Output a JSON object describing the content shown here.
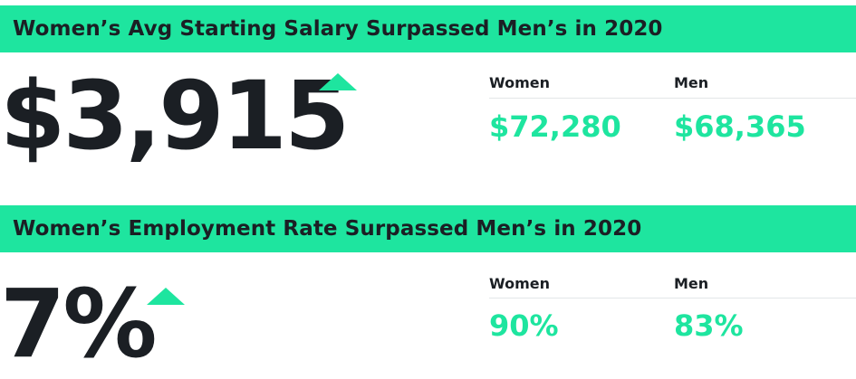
{
  "colors": {
    "accent": "#1ee59f",
    "text": "#1b1f24",
    "divider": "#e3e6e8"
  },
  "sections": [
    {
      "title": "Women’s Avg Starting Salary Surpassed Men’s in 2020",
      "headline_value": "$3,915",
      "headline_icon": "up-triangle-icon",
      "stats": [
        {
          "label": "Women",
          "value": "$72,280"
        },
        {
          "label": "Men",
          "value": "$68,365"
        }
      ]
    },
    {
      "title": "Women’s Employment Rate Surpassed Men’s in 2020",
      "headline_value": "7%",
      "headline_icon": "up-triangle-icon",
      "stats": [
        {
          "label": "Women",
          "value": "90%"
        },
        {
          "label": "Men",
          "value": "83%"
        }
      ]
    }
  ]
}
